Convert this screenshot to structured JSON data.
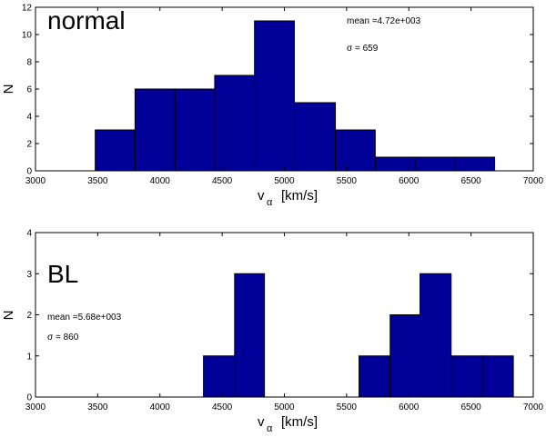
{
  "colors": {
    "bar_fill": "#000099",
    "bar_edge": "#000000",
    "axis": "#000000"
  },
  "chart_data": [
    {
      "type": "bar",
      "label": "normal",
      "xlabel": "v",
      "xlabel_sub": "α",
      "xlabel_unit": "[km/s]",
      "ylabel": "N",
      "xlim": [
        3000,
        7000
      ],
      "ylim": [
        0,
        12
      ],
      "xticks": [
        3000,
        3500,
        4000,
        4500,
        5000,
        5500,
        6000,
        6500,
        7000
      ],
      "yticks": [
        0,
        2,
        4,
        6,
        8,
        10,
        12
      ],
      "bins": [
        {
          "x0": 3480,
          "x1": 3800,
          "count": 3
        },
        {
          "x0": 3800,
          "x1": 4120,
          "count": 6
        },
        {
          "x0": 4120,
          "x1": 4440,
          "count": 6
        },
        {
          "x0": 4440,
          "x1": 4760,
          "count": 7
        },
        {
          "x0": 4760,
          "x1": 5080,
          "count": 11
        },
        {
          "x0": 5080,
          "x1": 5410,
          "count": 5
        },
        {
          "x0": 5410,
          "x1": 5730,
          "count": 3
        },
        {
          "x0": 5730,
          "x1": 6050,
          "count": 1
        },
        {
          "x0": 6050,
          "x1": 6370,
          "count": 1
        },
        {
          "x0": 6370,
          "x1": 6690,
          "count": 1
        }
      ],
      "mean_text": "mean =4.72e+003",
      "sigma_text": "σ = 659"
    },
    {
      "type": "bar",
      "label": "BL",
      "xlabel": "v",
      "xlabel_sub": "α",
      "xlabel_unit": "[km/s]",
      "ylabel": "N",
      "xlim": [
        3000,
        7000
      ],
      "ylim": [
        0,
        4
      ],
      "xticks": [
        3000,
        3500,
        4000,
        4500,
        5000,
        5500,
        6000,
        6500,
        7000
      ],
      "yticks": [
        0,
        1,
        2,
        3,
        4
      ],
      "bins": [
        {
          "x0": 4350,
          "x1": 4600,
          "count": 1
        },
        {
          "x0": 4600,
          "x1": 4840,
          "count": 3
        },
        {
          "x0": 5600,
          "x1": 5850,
          "count": 1
        },
        {
          "x0": 5850,
          "x1": 6090,
          "count": 2
        },
        {
          "x0": 6090,
          "x1": 6340,
          "count": 3
        },
        {
          "x0": 6340,
          "x1": 6590,
          "count": 1
        },
        {
          "x0": 6590,
          "x1": 6840,
          "count": 1
        }
      ],
      "mean_text": "mean =5.68e+003",
      "sigma_text": "σ = 860"
    }
  ]
}
